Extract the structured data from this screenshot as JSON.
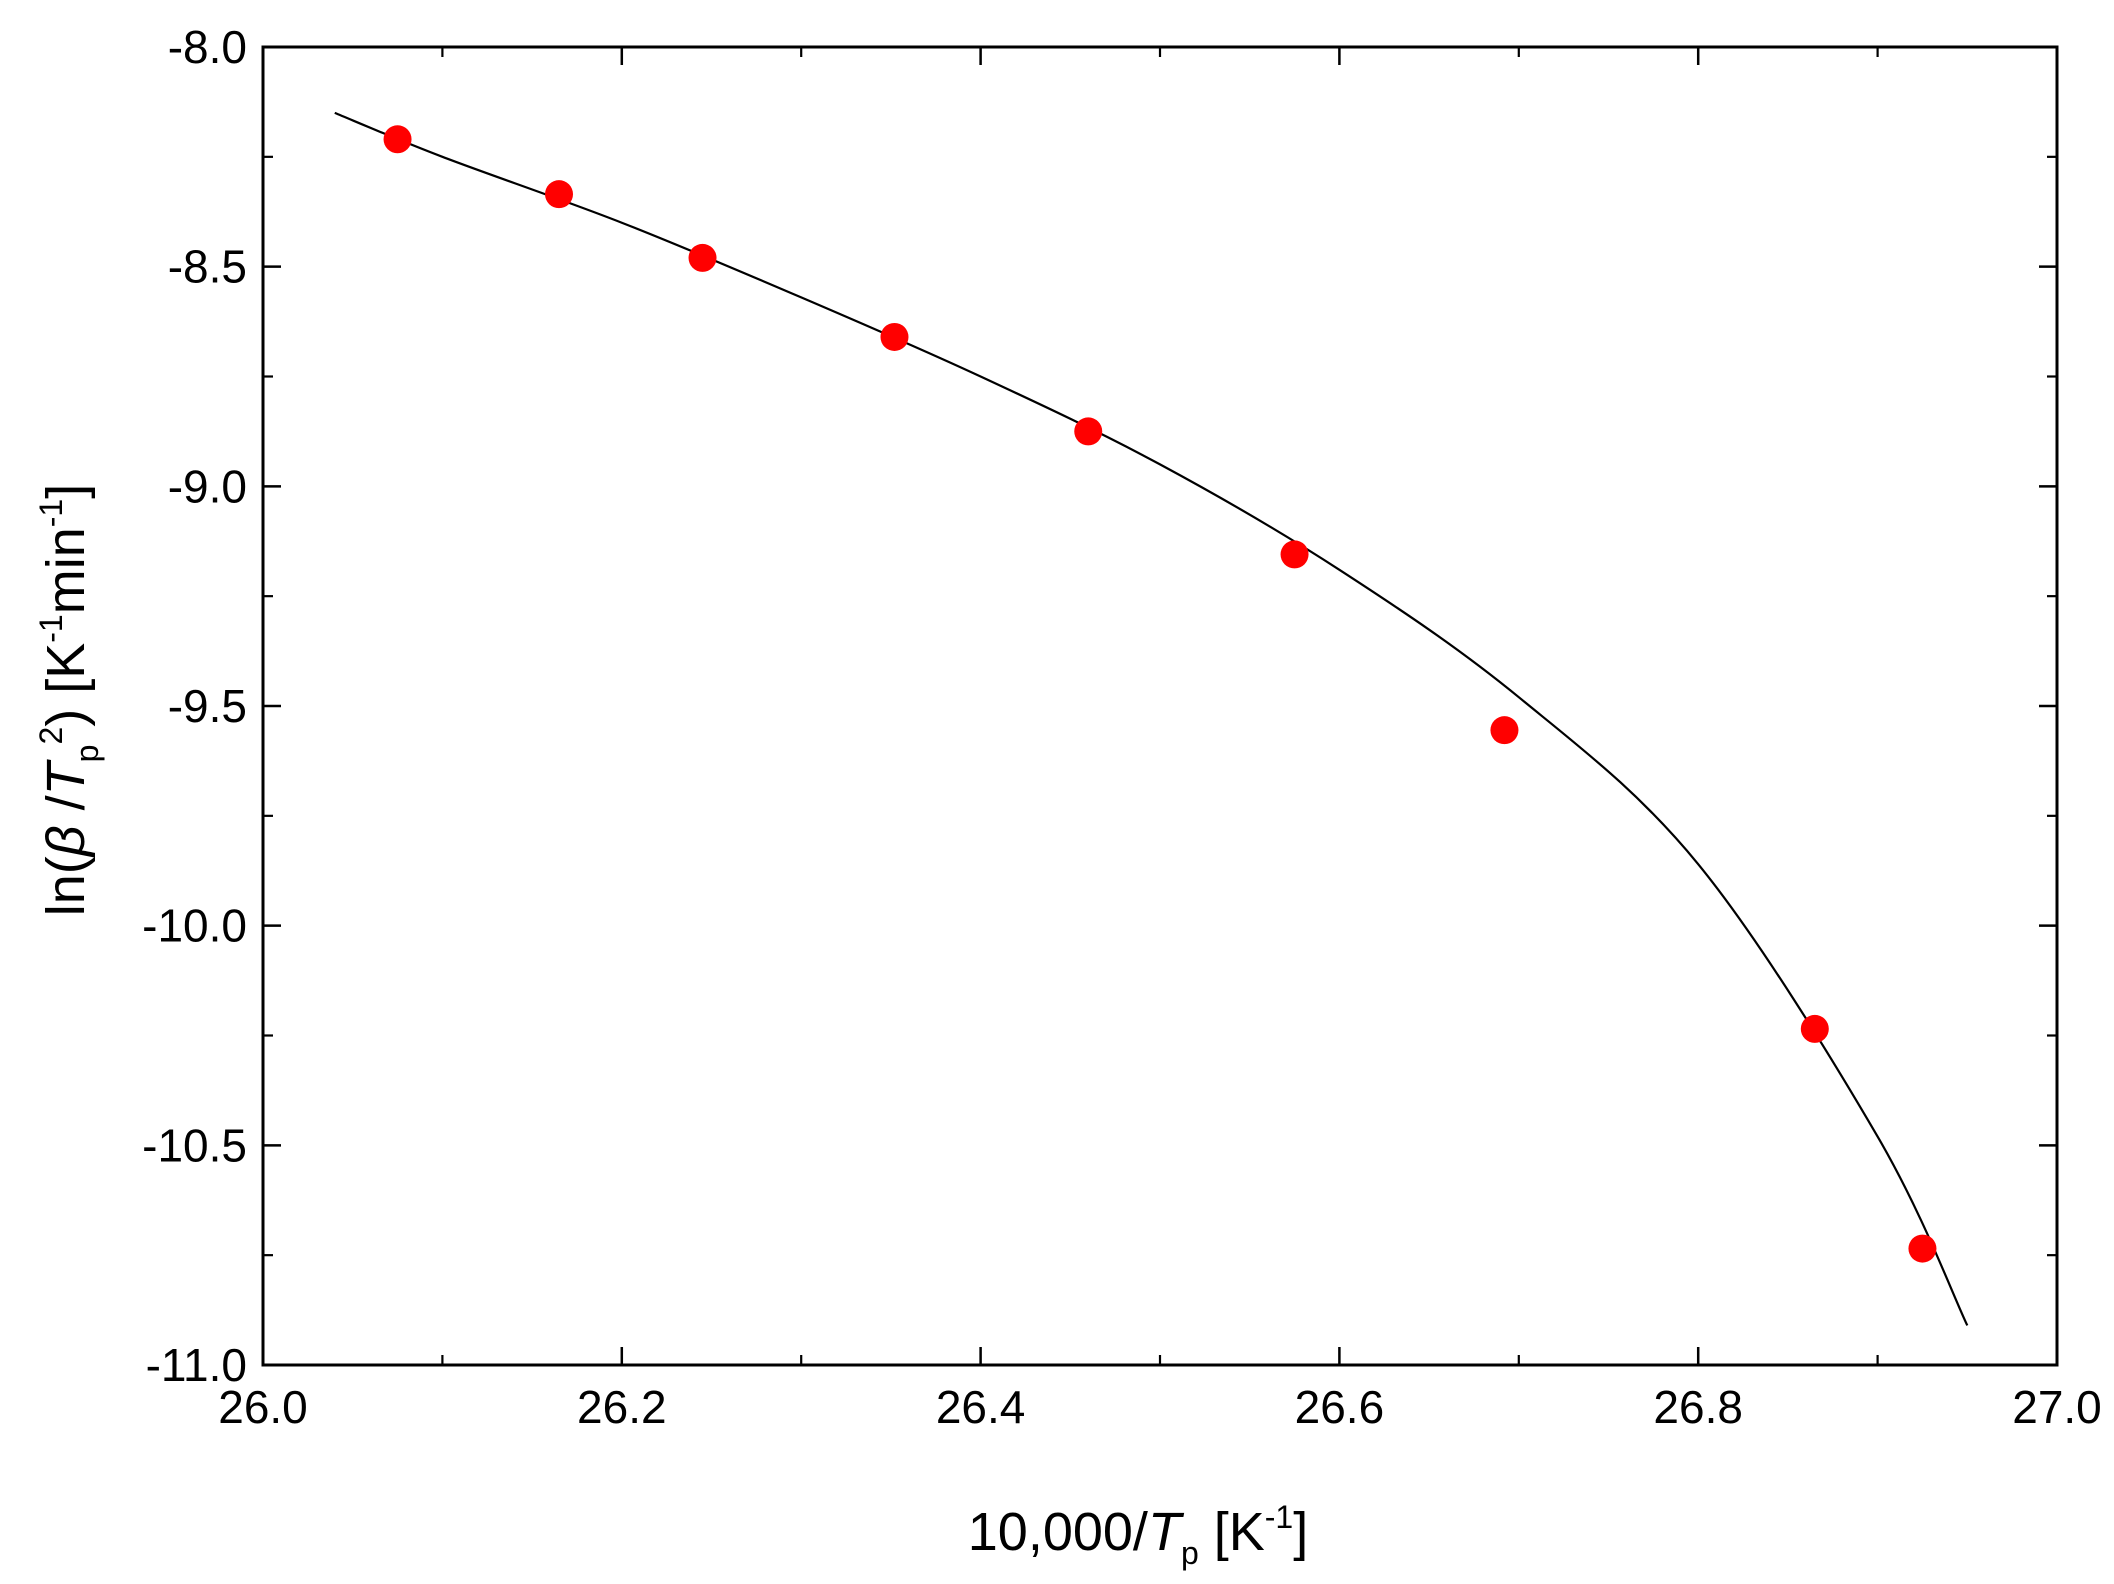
{
  "chart_data": {
    "type": "scatter",
    "xlim": [
      26.0,
      27.0
    ],
    "ylim": [
      -11.0,
      -8.0
    ],
    "grid": false,
    "x_ticks": [
      26.0,
      26.2,
      26.4,
      26.6,
      26.8,
      27.0
    ],
    "x_tick_labels": [
      "26.0",
      "26.2",
      "26.4",
      "26.6",
      "26.8",
      "27.0"
    ],
    "y_ticks": [
      -8.0,
      -8.5,
      -9.0,
      -9.5,
      -10.0,
      -10.5,
      -11.0
    ],
    "y_tick_labels": [
      "-8.0",
      "-8.5",
      "-9.0",
      "-9.5",
      "-10.0",
      "-10.5",
      "-11.0"
    ],
    "xlabel": {
      "prefix": "10,000/",
      "var": "T",
      "sub": "p",
      "unit_open": " [K",
      "sup": "-1",
      "unit_close": "]"
    },
    "ylabel": {
      "prefix": "ln(",
      "beta": "β",
      "slash": " /",
      "var": "T",
      "sub": "p",
      "sup": "2",
      "close": ") [K",
      "sup2": "-1",
      "mid": "min",
      "sup3": "-1",
      "end": "]"
    },
    "series": [
      {
        "kind": "points",
        "color": "#ff0000",
        "x": [
          26.075,
          26.165,
          26.245,
          26.352,
          26.46,
          26.575,
          26.692,
          26.865,
          26.925
        ],
        "y": [
          -8.21,
          -8.335,
          -8.48,
          -8.66,
          -8.875,
          -9.155,
          -9.555,
          -10.235,
          -10.735
        ]
      },
      {
        "kind": "fit-curve",
        "color": "#000000",
        "x": [
          26.04,
          26.1,
          26.2,
          26.3,
          26.4,
          26.5,
          26.6,
          26.7,
          26.8,
          26.9,
          26.95
        ],
        "y": [
          -8.15,
          -8.25,
          -8.4,
          -8.57,
          -8.75,
          -8.95,
          -9.19,
          -9.48,
          -9.86,
          -10.48,
          -10.91
        ]
      }
    ]
  }
}
